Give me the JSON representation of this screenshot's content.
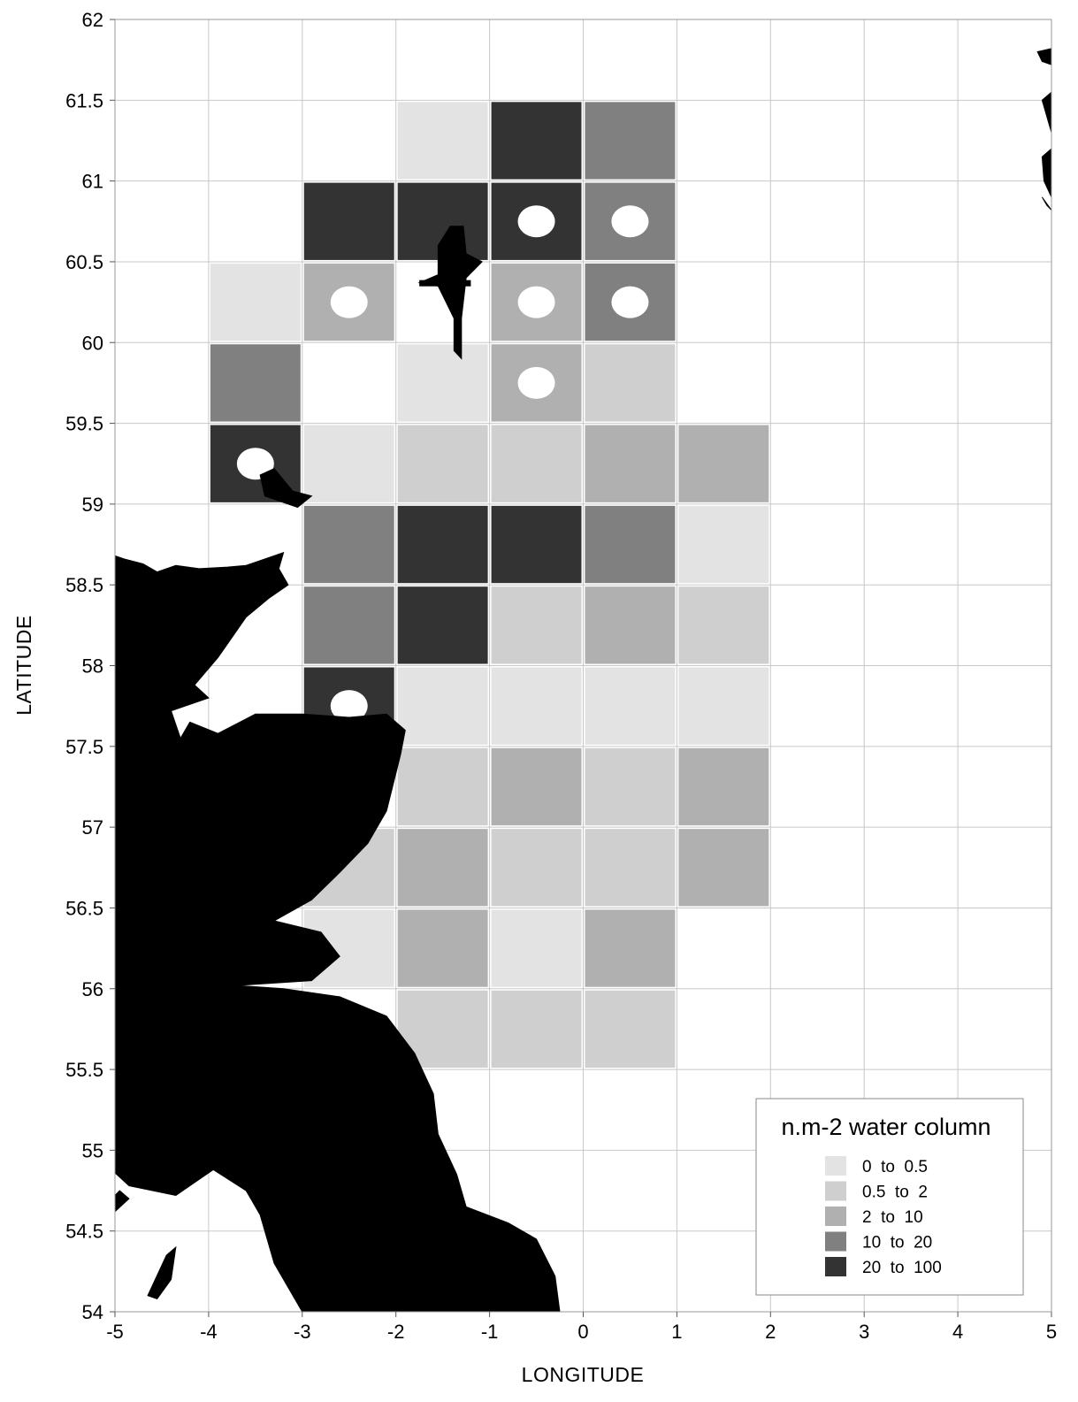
{
  "chart_data": {
    "type": "heatmap",
    "xlabel": "LONGITUDE",
    "ylabel": "LATITUDE",
    "xlim": [
      -5,
      5
    ],
    "ylim": [
      54,
      62
    ],
    "cell_size": {
      "lon": 1,
      "lat": 0.5
    },
    "x_ticks": [
      "-5",
      "-4",
      "-3",
      "-2",
      "-1",
      "0",
      "1",
      "2",
      "3",
      "4",
      "5"
    ],
    "y_ticks": [
      "62",
      "61.5",
      "61",
      "60.5",
      "60",
      "59.5",
      "59",
      "58.5",
      "58",
      "57.5",
      "57",
      "56.5",
      "56",
      "55.5",
      "55",
      "54.5",
      "54"
    ],
    "grid": true,
    "legend": {
      "title": "n.m-2 water column",
      "placement": "bottom-right",
      "entries": [
        {
          "label": "0  to  0.5",
          "color": "#e3e3e3"
        },
        {
          "label": "0.5  to  2",
          "color": "#cfcfcf"
        },
        {
          "label": "2  to  10",
          "color": "#b0b0b0"
        },
        {
          "label": "10  to  20",
          "color": "#808080"
        },
        {
          "label": "20  to  100",
          "color": "#333333"
        }
      ]
    },
    "cells": [
      {
        "lon": -2,
        "lat": 61.0,
        "class": 0
      },
      {
        "lon": -1,
        "lat": 61.0,
        "class": 4
      },
      {
        "lon": 0,
        "lat": 61.0,
        "class": 3
      },
      {
        "lon": -3,
        "lat": 60.5,
        "class": 4
      },
      {
        "lon": -2,
        "lat": 60.5,
        "class": 4
      },
      {
        "lon": -1,
        "lat": 60.5,
        "class": 4,
        "marker": true
      },
      {
        "lon": 0,
        "lat": 60.5,
        "class": 3,
        "marker": true
      },
      {
        "lon": -4,
        "lat": 60.0,
        "class": 0
      },
      {
        "lon": -3,
        "lat": 60.0,
        "class": 2,
        "marker": true
      },
      {
        "lon": -1,
        "lat": 60.0,
        "class": 2,
        "marker": true
      },
      {
        "lon": 0,
        "lat": 60.0,
        "class": 3,
        "marker": true
      },
      {
        "lon": -4,
        "lat": 59.5,
        "class": 3
      },
      {
        "lon": -2,
        "lat": 59.5,
        "class": 0
      },
      {
        "lon": -1,
        "lat": 59.5,
        "class": 2,
        "marker": true
      },
      {
        "lon": 0,
        "lat": 59.5,
        "class": 1
      },
      {
        "lon": -4,
        "lat": 59.0,
        "class": 4,
        "marker": true
      },
      {
        "lon": -3,
        "lat": 59.0,
        "class": 0
      },
      {
        "lon": -2,
        "lat": 59.0,
        "class": 1
      },
      {
        "lon": -1,
        "lat": 59.0,
        "class": 1
      },
      {
        "lon": 0,
        "lat": 59.0,
        "class": 2
      },
      {
        "lon": 1,
        "lat": 59.0,
        "class": 2
      },
      {
        "lon": -3,
        "lat": 58.5,
        "class": 3
      },
      {
        "lon": -2,
        "lat": 58.5,
        "class": 4
      },
      {
        "lon": -1,
        "lat": 58.5,
        "class": 4
      },
      {
        "lon": 0,
        "lat": 58.5,
        "class": 3
      },
      {
        "lon": 1,
        "lat": 58.5,
        "class": 0
      },
      {
        "lon": -3,
        "lat": 58.0,
        "class": 3
      },
      {
        "lon": -2,
        "lat": 58.0,
        "class": 4
      },
      {
        "lon": -1,
        "lat": 58.0,
        "class": 1
      },
      {
        "lon": 0,
        "lat": 58.0,
        "class": 2
      },
      {
        "lon": 1,
        "lat": 58.0,
        "class": 1
      },
      {
        "lon": -3,
        "lat": 57.5,
        "class": 4,
        "marker": true
      },
      {
        "lon": -2,
        "lat": 57.5,
        "class": 0
      },
      {
        "lon": -1,
        "lat": 57.5,
        "class": 0
      },
      {
        "lon": 0,
        "lat": 57.5,
        "class": 0
      },
      {
        "lon": 1,
        "lat": 57.5,
        "class": 0
      },
      {
        "lon": -2,
        "lat": 57.0,
        "class": 1
      },
      {
        "lon": -1,
        "lat": 57.0,
        "class": 2
      },
      {
        "lon": 0,
        "lat": 57.0,
        "class": 1
      },
      {
        "lon": 1,
        "lat": 57.0,
        "class": 2
      },
      {
        "lon": -3,
        "lat": 56.5,
        "class": 1
      },
      {
        "lon": -2,
        "lat": 56.5,
        "class": 2
      },
      {
        "lon": -1,
        "lat": 56.5,
        "class": 1
      },
      {
        "lon": 0,
        "lat": 56.5,
        "class": 1
      },
      {
        "lon": 1,
        "lat": 56.5,
        "class": 2
      },
      {
        "lon": -3,
        "lat": 56.0,
        "class": 0
      },
      {
        "lon": -2,
        "lat": 56.0,
        "class": 2
      },
      {
        "lon": -1,
        "lat": 56.0,
        "class": 0
      },
      {
        "lon": 0,
        "lat": 56.0,
        "class": 2
      },
      {
        "lon": -2,
        "lat": 55.5,
        "class": 1
      },
      {
        "lon": -1,
        "lat": 55.5,
        "class": 1
      },
      {
        "lon": 0,
        "lat": 55.5,
        "class": 1
      }
    ],
    "land": {
      "scotland_england": [
        [
          -5.0,
          58.68
        ],
        [
          -4.9,
          58.66
        ],
        [
          -4.7,
          58.63
        ],
        [
          -4.55,
          58.58
        ],
        [
          -4.35,
          58.62
        ],
        [
          -4.1,
          58.6
        ],
        [
          -3.8,
          58.61
        ],
        [
          -3.6,
          58.62
        ],
        [
          -3.4,
          58.66
        ],
        [
          -3.2,
          58.7
        ],
        [
          -3.25,
          58.6
        ],
        [
          -3.15,
          58.5
        ],
        [
          -3.35,
          58.42
        ],
        [
          -3.6,
          58.3
        ],
        [
          -3.9,
          58.05
        ],
        [
          -4.15,
          57.88
        ],
        [
          -4.0,
          57.8
        ],
        [
          -4.4,
          57.72
        ],
        [
          -4.3,
          57.55
        ],
        [
          -4.2,
          57.65
        ],
        [
          -3.9,
          57.58
        ],
        [
          -3.5,
          57.7
        ],
        [
          -3.0,
          57.7
        ],
        [
          -2.5,
          57.68
        ],
        [
          -2.1,
          57.7
        ],
        [
          -1.9,
          57.6
        ],
        [
          -1.95,
          57.45
        ],
        [
          -2.1,
          57.1
        ],
        [
          -2.3,
          56.9
        ],
        [
          -2.6,
          56.72
        ],
        [
          -2.9,
          56.55
        ],
        [
          -3.3,
          56.42
        ],
        [
          -2.8,
          56.35
        ],
        [
          -2.6,
          56.2
        ],
        [
          -2.9,
          56.05
        ],
        [
          -3.7,
          56.02
        ],
        [
          -3.2,
          56.0
        ],
        [
          -2.6,
          55.95
        ],
        [
          -2.1,
          55.83
        ],
        [
          -1.8,
          55.6
        ],
        [
          -1.6,
          55.35
        ],
        [
          -1.55,
          55.1
        ],
        [
          -1.35,
          54.85
        ],
        [
          -1.25,
          54.65
        ],
        [
          -0.8,
          54.55
        ],
        [
          -0.5,
          54.45
        ],
        [
          -0.3,
          54.22
        ],
        [
          -0.25,
          54.0
        ],
        [
          -3.0,
          54.0
        ],
        [
          -3.15,
          54.15
        ],
        [
          -3.3,
          54.3
        ],
        [
          -3.45,
          54.6
        ],
        [
          -3.6,
          54.75
        ],
        [
          -3.95,
          54.88
        ],
        [
          -4.35,
          54.72
        ],
        [
          -4.85,
          54.78
        ],
        [
          -5.0,
          54.86
        ]
      ],
      "outer_hebrides_strip": [
        [
          -5.0,
          55.35
        ],
        [
          -4.85,
          55.48
        ],
        [
          -4.95,
          55.55
        ],
        [
          -5.0,
          55.6
        ]
      ],
      "galloway_mull": [
        [
          -5.0,
          54.62
        ],
        [
          -4.85,
          54.7
        ],
        [
          -4.95,
          54.75
        ],
        [
          -5.0,
          54.72
        ]
      ],
      "isle_of_man": [
        [
          -4.65,
          54.1
        ],
        [
          -4.45,
          54.35
        ],
        [
          -4.35,
          54.4
        ],
        [
          -4.4,
          54.2
        ],
        [
          -4.55,
          54.08
        ]
      ],
      "orkney": [
        [
          -3.45,
          59.18
        ],
        [
          -3.3,
          59.22
        ],
        [
          -3.1,
          59.08
        ],
        [
          -2.9,
          59.05
        ],
        [
          -3.05,
          58.98
        ],
        [
          -3.25,
          59.02
        ],
        [
          -3.4,
          59.05
        ]
      ],
      "shetland": [
        [
          -1.42,
          60.72
        ],
        [
          -1.28,
          60.72
        ],
        [
          -1.25,
          60.55
        ],
        [
          -1.08,
          60.5
        ],
        [
          -1.25,
          60.4
        ],
        [
          -1.3,
          60.15
        ],
        [
          -1.3,
          59.9
        ],
        [
          -1.38,
          59.95
        ],
        [
          -1.38,
          60.15
        ],
        [
          -1.55,
          60.35
        ],
        [
          -1.75,
          60.37
        ],
        [
          -1.55,
          60.42
        ],
        [
          -1.55,
          60.6
        ]
      ],
      "norway_fragments": [
        [
          [
            4.85,
            61.8
          ],
          [
            5.0,
            61.82
          ],
          [
            5.0,
            61.72
          ],
          [
            4.9,
            61.74
          ]
        ],
        [
          [
            4.9,
            61.5
          ],
          [
            5.0,
            61.55
          ],
          [
            5.0,
            61.3
          ],
          [
            4.95,
            61.4
          ]
        ],
        [
          [
            4.9,
            61.15
          ],
          [
            5.0,
            61.2
          ],
          [
            5.0,
            60.9
          ],
          [
            4.92,
            61.0
          ]
        ],
        [
          [
            4.9,
            60.9
          ],
          [
            5.0,
            60.82
          ],
          [
            4.95,
            60.85
          ]
        ]
      ]
    }
  }
}
